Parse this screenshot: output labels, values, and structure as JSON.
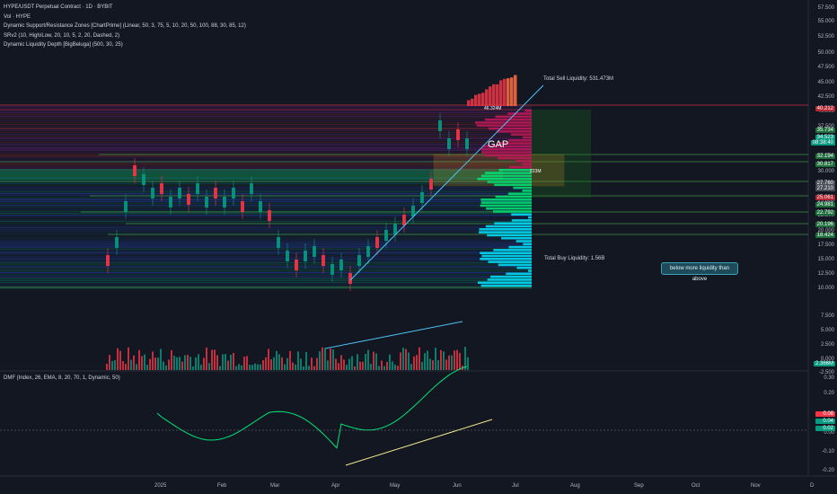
{
  "legend": {
    "line1": "HYPE/USDT Perpetual Contract · 1D · BYBIT",
    "line2": "Vol · HYPE",
    "line3": "Dynamic Support/Resistance Zones [ChartPrime] (Linear, 50, 3, 75, 5, 10, 20, 50, 100, 88, 30, 85, 12)",
    "line4": "SRv2 (10, High/Low, 20, 10, 5, 2, 20, Dashed, 2)",
    "line5": "Dynamic Liquidity Depth [BigBeluga] (500, 30, 25)"
  },
  "dmf_legend": "DMF (Index, 26, EMA, 8, 20, 70, 1, Dynamic, 50)",
  "annotations": {
    "total_sell": "Total Sell Liquidity: 531.473M",
    "total_buy": "Total Buy Liquidity: 1.56B",
    "gap": "GAP",
    "callout": "below more liquidity than above",
    "sell_level": "46.324M",
    "mid_level": "223M"
  },
  "price_ticks": [
    "57.500",
    "55.000",
    "52.500",
    "50.000",
    "47.500",
    "45.000",
    "42.500",
    "40.000",
    "37.500",
    "35.000",
    "32.500",
    "30.000",
    "27.500",
    "25.000",
    "22.500",
    "20.000",
    "17.500",
    "15.000",
    "12.500",
    "10.000",
    "7.500",
    "5.000",
    "2.500",
    "0.000",
    "-2.500"
  ],
  "dmf_ticks": [
    "0.30",
    "0.20",
    "0.10",
    "0.00",
    "-0.10",
    "-0.20"
  ],
  "badges": [
    {
      "value": "40.212",
      "color": "#b22833"
    },
    {
      "value": "35.734",
      "color": "#1e6e3c"
    },
    {
      "value": "34.523",
      "color": "#089981"
    },
    {
      "value": "08:38:40",
      "color": "#089981"
    },
    {
      "value": "32.194",
      "color": "#1e6e3c"
    },
    {
      "value": "30.817",
      "color": "#1e6e3c"
    },
    {
      "value": "27.760",
      "color": "#4a4e58"
    },
    {
      "value": "27.210",
      "color": "#4a4e58"
    },
    {
      "value": "25.061",
      "color": "#b22833"
    },
    {
      "value": "24.981",
      "color": "#1e6e3c"
    },
    {
      "value": "22.792",
      "color": "#1e6e3c"
    },
    {
      "value": "20.196",
      "color": "#1e6e3c"
    },
    {
      "value": "18.424",
      "color": "#1e6e3c"
    },
    {
      "value": "2.366M",
      "color": "#089981"
    },
    {
      "value": "0.08",
      "color": "#f23645"
    },
    {
      "value": "0.04",
      "color": "#089981"
    },
    {
      "value": "0.02",
      "color": "#089981"
    }
  ],
  "time_labels": [
    "2025",
    "Feb",
    "Mar",
    "Apr",
    "May",
    "Jun",
    "Jul",
    "Aug",
    "Sep",
    "Oct",
    "Nov",
    "D"
  ],
  "colors": {
    "bg": "#131722",
    "up": "#089981",
    "down": "#f23645",
    "trend": "#4fc3f7",
    "dmf_trend": "#f0e68c"
  }
}
